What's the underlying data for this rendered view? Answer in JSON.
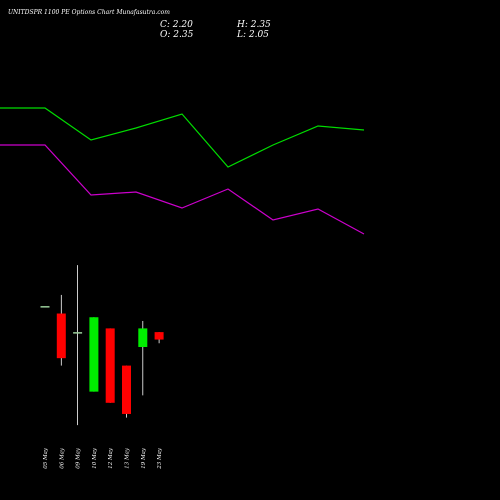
{
  "chart_data": {
    "type": "candlestick",
    "title": "UNITDSPR 1100  PE Options  Chart Munafasutra.com",
    "ohlc_readout": {
      "close_label": "C: 2.20",
      "high_label": "H: 2.35",
      "open_label": "O: 2.35",
      "low_label": "L: 2.05"
    },
    "categories": [
      "05 May",
      "06 May",
      "09 May",
      "10 May",
      "12 May",
      "13 May",
      "19 May",
      "23 May"
    ],
    "candles": [
      {
        "date": "05 May",
        "open": 2.8,
        "high": 2.8,
        "low": 2.8,
        "close": 2.8
      },
      {
        "date": "06 May",
        "open": 2.7,
        "high": 2.95,
        "low": 2.0,
        "close": 2.1
      },
      {
        "date": "09 May",
        "open": 2.45,
        "high": 3.35,
        "low": 1.2,
        "close": 2.45
      },
      {
        "date": "10 May",
        "open": 1.65,
        "high": 2.65,
        "low": 1.65,
        "close": 2.65
      },
      {
        "date": "12 May",
        "open": 2.5,
        "high": 2.5,
        "low": 1.5,
        "close": 1.5
      },
      {
        "date": "13 May",
        "open": 2.0,
        "high": 2.0,
        "low": 1.3,
        "close": 1.35
      },
      {
        "date": "19 May",
        "open": 2.25,
        "high": 2.6,
        "low": 1.6,
        "close": 2.5
      },
      {
        "date": "23 May",
        "open": 2.45,
        "high": 2.45,
        "low": 2.3,
        "close": 2.35
      }
    ],
    "price_range": [
      1.0,
      3.5
    ],
    "overlay_lines": [
      {
        "color": "#00dd00",
        "values": [
          108,
          108,
          140,
          128,
          114,
          167,
          145,
          126,
          130
        ]
      },
      {
        "color": "#cc00cc",
        "values": [
          145,
          145,
          195,
          192,
          208,
          189,
          220,
          209,
          234
        ]
      }
    ],
    "colors": {
      "background": "#000000",
      "up": "#00ee00",
      "down": "#ff0000",
      "neutral": "#99cc99",
      "wick": "#ffffff"
    }
  }
}
